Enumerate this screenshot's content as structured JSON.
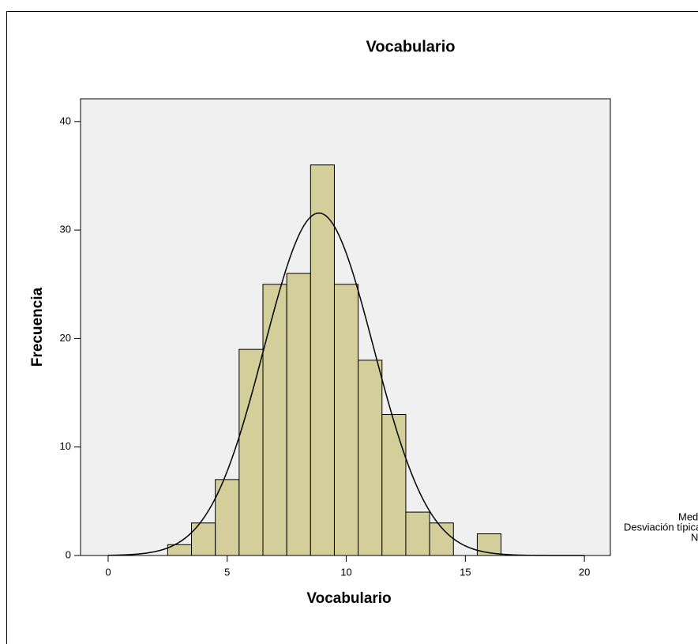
{
  "chart_data": {
    "type": "histogram",
    "title": "Vocabulario",
    "x_label": "Vocabulario",
    "y_label": "Frecuencia",
    "bins": [
      2.5,
      3.5,
      4.5,
      5.5,
      6.5,
      7.5,
      8.5,
      9.5,
      10.5,
      11.5,
      12.5,
      13.5,
      14.5,
      15.5,
      16.5
    ],
    "values": [
      1,
      3,
      7,
      19,
      25,
      26,
      36,
      25,
      18,
      13,
      4,
      3,
      0,
      2
    ],
    "color": "#d3ce9a",
    "normal_curve": {
      "mean": 8.85,
      "std": 2.3
    },
    "xlim": [
      -1.16,
      21.09
    ],
    "xticks": [
      0,
      5,
      10,
      15,
      20
    ],
    "ylim": [
      0,
      42.1
    ],
    "yticks": [
      0,
      10,
      20,
      30,
      40
    ],
    "legend_labels": [
      "Media",
      "Desviación típica",
      "N"
    ]
  }
}
